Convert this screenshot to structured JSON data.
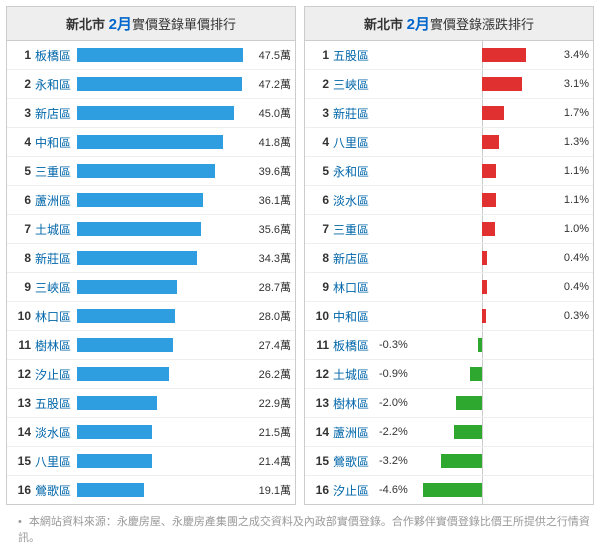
{
  "left": {
    "title_city": "新北市",
    "title_month": "2月",
    "title_rest": "實價登錄單價排行",
    "max": 47.5,
    "bar_color": "#2f9ee0",
    "unit_suffix": "萬",
    "rows": [
      {
        "rank": 1,
        "name": "板橋區",
        "val": 47.5
      },
      {
        "rank": 2,
        "name": "永和區",
        "val": 47.2
      },
      {
        "rank": 3,
        "name": "新店區",
        "val": 45.0
      },
      {
        "rank": 4,
        "name": "中和區",
        "val": 41.8
      },
      {
        "rank": 5,
        "name": "三重區",
        "val": 39.6
      },
      {
        "rank": 6,
        "name": "蘆洲區",
        "val": 36.1
      },
      {
        "rank": 7,
        "name": "土城區",
        "val": 35.6
      },
      {
        "rank": 8,
        "name": "新莊區",
        "val": 34.3
      },
      {
        "rank": 9,
        "name": "三峽區",
        "val": 28.7
      },
      {
        "rank": 10,
        "name": "林口區",
        "val": 28.0
      },
      {
        "rank": 11,
        "name": "樹林區",
        "val": 27.4
      },
      {
        "rank": 12,
        "name": "汐止區",
        "val": 26.2
      },
      {
        "rank": 13,
        "name": "五股區",
        "val": 22.9
      },
      {
        "rank": 14,
        "name": "淡水區",
        "val": 21.5
      },
      {
        "rank": 15,
        "name": "八里區",
        "val": 21.4
      },
      {
        "rank": 16,
        "name": "鶯歌區",
        "val": 19.1
      }
    ]
  },
  "right": {
    "title_city": "新北市",
    "title_month": "2月",
    "title_rest": "實價登錄漲跌排行",
    "max_abs": 4.6,
    "pos_color": "#e03030",
    "neg_color": "#2fa82f",
    "rows": [
      {
        "rank": 1,
        "name": "五股區",
        "val": 3.4
      },
      {
        "rank": 2,
        "name": "三峽區",
        "val": 3.1
      },
      {
        "rank": 3,
        "name": "新莊區",
        "val": 1.7
      },
      {
        "rank": 4,
        "name": "八里區",
        "val": 1.3
      },
      {
        "rank": 5,
        "name": "永和區",
        "val": 1.1
      },
      {
        "rank": 6,
        "name": "淡水區",
        "val": 1.1
      },
      {
        "rank": 7,
        "name": "三重區",
        "val": 1.0
      },
      {
        "rank": 8,
        "name": "新店區",
        "val": 0.4
      },
      {
        "rank": 9,
        "name": "林口區",
        "val": 0.4
      },
      {
        "rank": 10,
        "name": "中和區",
        "val": 0.3
      },
      {
        "rank": 11,
        "name": "板橋區",
        "val": -0.3
      },
      {
        "rank": 12,
        "name": "土城區",
        "val": -0.9
      },
      {
        "rank": 13,
        "name": "樹林區",
        "val": -2.0
      },
      {
        "rank": 14,
        "name": "蘆洲區",
        "val": -2.2
      },
      {
        "rank": 15,
        "name": "鶯歌區",
        "val": -3.2
      },
      {
        "rank": 16,
        "name": "汐止區",
        "val": -4.6
      }
    ]
  },
  "footer": "本網站資料來源：永慶房屋、永慶房產集團之成交資料及內政部實價登錄。合作夥伴實價登錄比價王所提供之行情資訊。"
}
